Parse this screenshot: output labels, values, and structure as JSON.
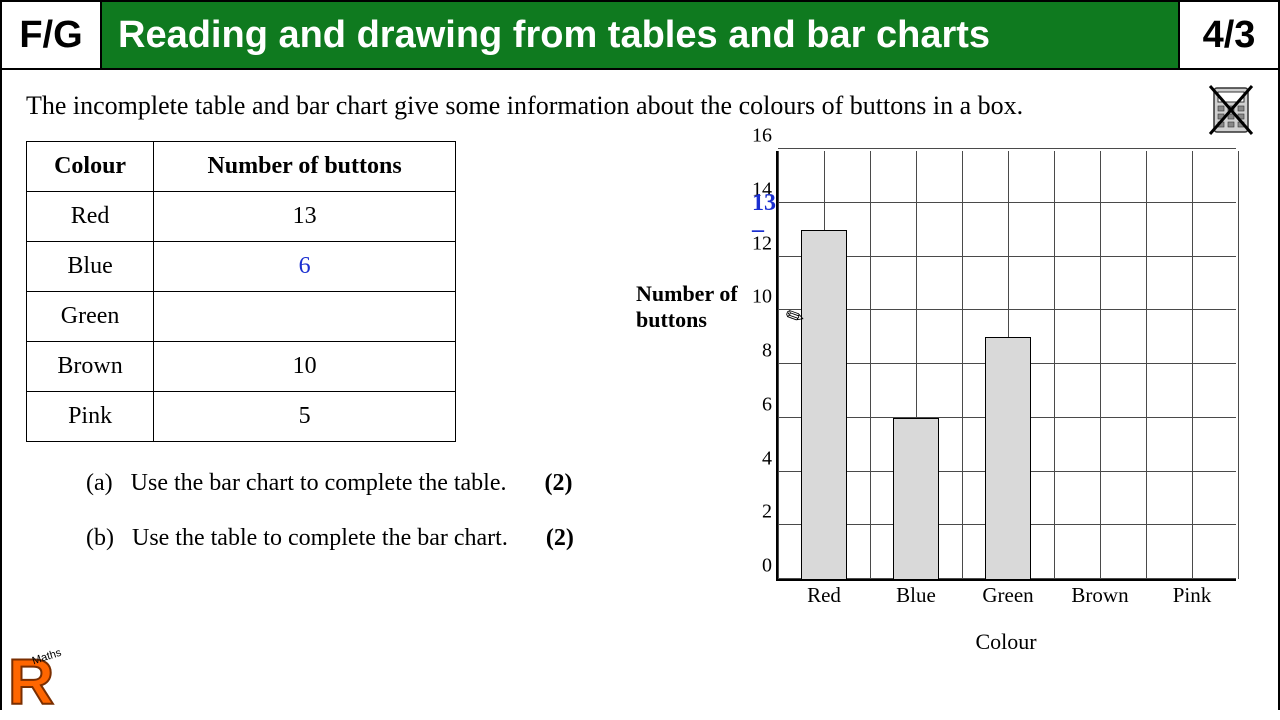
{
  "header": {
    "left": "F/G",
    "title": "Reading and drawing from tables and bar charts",
    "right": "4/3",
    "bg_color": "#0f7a1f",
    "title_color": "#ffffff"
  },
  "question": "The incomplete table and bar chart give some information about the colours of buttons in a box.",
  "table": {
    "columns": [
      "Colour",
      "Number of buttons"
    ],
    "rows": [
      {
        "colour": "Red",
        "value": "13",
        "handwritten": false
      },
      {
        "colour": "Blue",
        "value": "6",
        "handwritten": true
      },
      {
        "colour": "Green",
        "value": "",
        "handwritten": false
      },
      {
        "colour": "Brown",
        "value": "10",
        "handwritten": false
      },
      {
        "colour": "Pink",
        "value": "5",
        "handwritten": false
      }
    ]
  },
  "subquestions": {
    "a": {
      "letter": "(a)",
      "text": "Use the bar chart to complete the table.",
      "marks": "(2)"
    },
    "b": {
      "letter": "(b)",
      "text": "Use the table to complete the bar chart.",
      "marks": "(2)"
    }
  },
  "chart": {
    "type": "bar",
    "ylabel": "Number of buttons",
    "xlabel": "Colour",
    "ylim": [
      0,
      16
    ],
    "ytick_step": 2,
    "yticks": [
      0,
      2,
      4,
      6,
      8,
      10,
      12,
      14,
      16
    ],
    "categories": [
      "Red",
      "Blue",
      "Green",
      "Brown",
      "Pink"
    ],
    "values": [
      13,
      6,
      9,
      null,
      null
    ],
    "bar_color": "#d9d9d9",
    "bar_border": "#000000",
    "grid_color": "#4a4a4a",
    "background_color": "#ffffff",
    "x_gridlines": 10,
    "annotation": {
      "text": "13 –",
      "at_y": 13
    }
  },
  "icons": {
    "nocalc_title": "No calculator",
    "pencil": "✎"
  },
  "logo": {
    "text": "R",
    "subtitle": "Maths"
  },
  "colors": {
    "handwritten": "#1a2fd0",
    "logo_fill": "#ff6600",
    "logo_stroke": "#7a2e00"
  }
}
